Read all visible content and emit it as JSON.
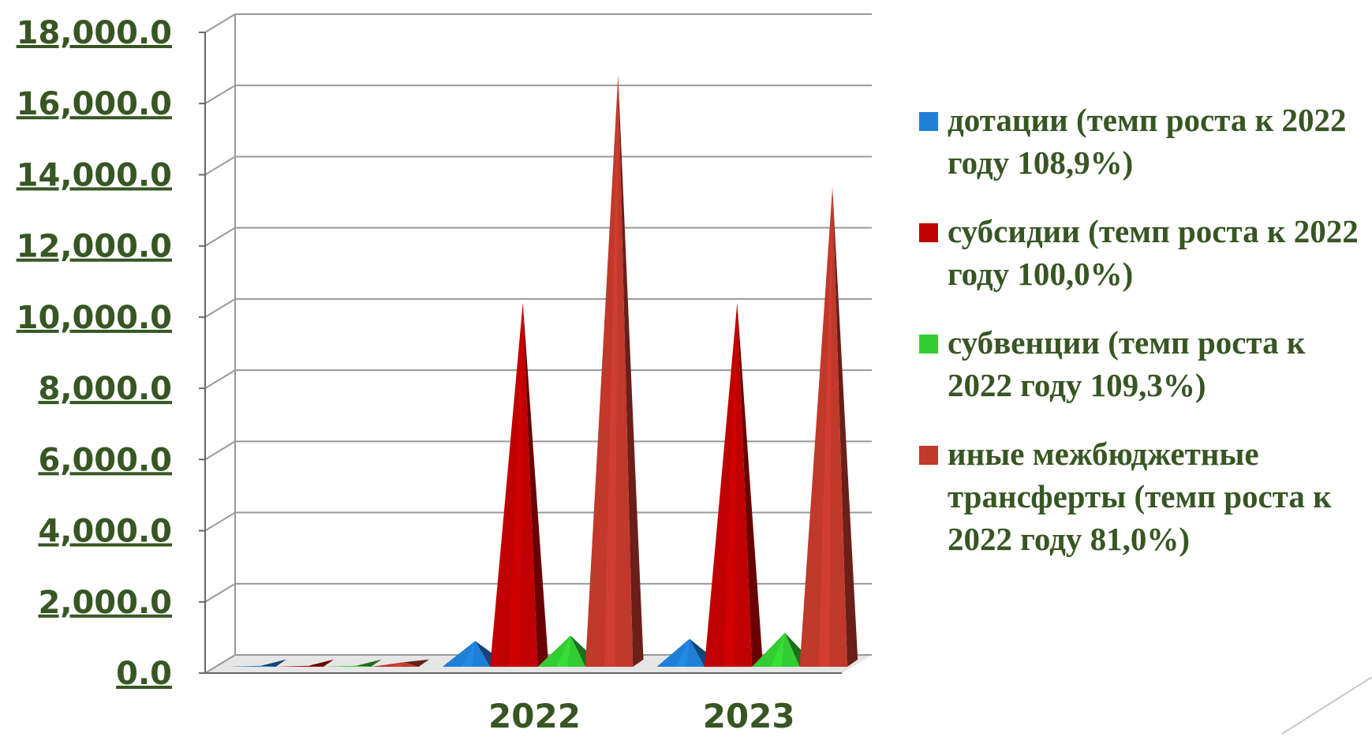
{
  "chart_data": {
    "type": "bar",
    "style": "3d-pyramid",
    "categories": [
      "",
      "2022",
      "2023"
    ],
    "ylim": [
      0,
      18000
    ],
    "yticks": [
      "0.0",
      "2,000.0",
      "4,000.0",
      "6,000.0",
      "8,000.0",
      "10,000.0",
      "12,000.0",
      "14,000.0",
      "16,000.0",
      "18,000.0"
    ],
    "grid": true,
    "legend_position": "right",
    "series": [
      {
        "name": "дотации (темп роста к 2022 году 108,9%)",
        "color": "#1f7fd6",
        "values": [
          0,
          700,
          760
        ]
      },
      {
        "name": "субсидии (темп роста к 2022 году 100,0%)",
        "color": "#c00000",
        "values": [
          0,
          10200,
          10200
        ]
      },
      {
        "name": "субвенции (темп роста к 2022 году 109,3%)",
        "color": "#33cc33",
        "values": [
          0,
          850,
          930
        ]
      },
      {
        "name": "иные межбюджетные трансферты (темп роста к 2022 году 81,0%)",
        "color": "#c0392b",
        "values": [
          100,
          16600,
          13450
        ]
      }
    ]
  }
}
